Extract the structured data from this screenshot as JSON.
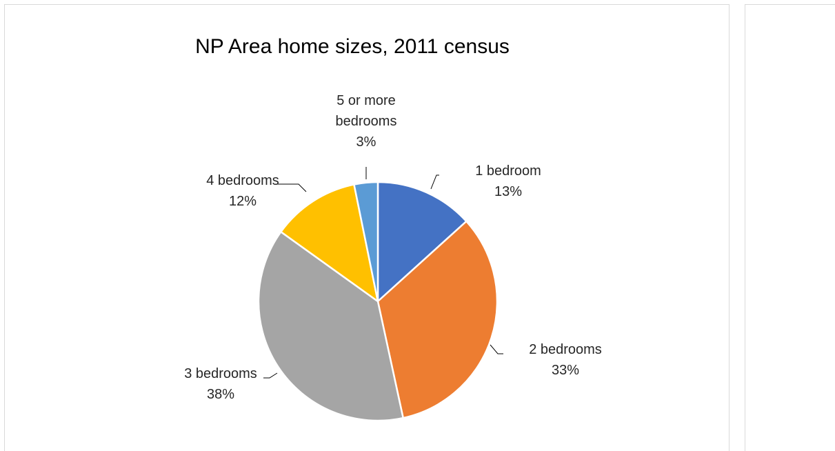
{
  "chart_data": {
    "type": "pie",
    "title": "NP Area home sizes, 2011 census",
    "categories": [
      "1 bedroom",
      "2 bedrooms",
      "3 bedrooms",
      "4 bedrooms",
      "5 or more bedrooms"
    ],
    "values": [
      13.3,
      33.3,
      38.3,
      11.9,
      3.2
    ],
    "data_labels": [
      {
        "name_lines": [
          "1 bedroom"
        ],
        "percent": "13%"
      },
      {
        "name_lines": [
          "2 bedrooms"
        ],
        "percent": "33%"
      },
      {
        "name_lines": [
          "3 bedrooms"
        ],
        "percent": "38%"
      },
      {
        "name_lines": [
          "4 bedrooms"
        ],
        "percent": "12%"
      },
      {
        "name_lines": [
          "5 or more",
          "bedrooms"
        ],
        "percent": "3%"
      }
    ],
    "colors": [
      "#4472C4",
      "#ED7D31",
      "#A5A5A5",
      "#FFC000",
      "#5B9BD5"
    ],
    "legend": "none",
    "start_angle_deg": 0,
    "direction": "clockwise"
  }
}
